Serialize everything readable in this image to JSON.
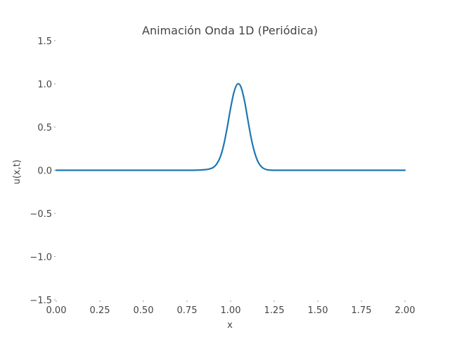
{
  "chart_data": {
    "type": "line",
    "title": "Animación Onda 1D (Periódica)",
    "xlabel": "x",
    "ylabel": "u(x,t)",
    "xlim": [
      0.0,
      2.0
    ],
    "ylim": [
      -1.5,
      1.5
    ],
    "x_ticks": [
      "0.00",
      "0.25",
      "0.50",
      "0.75",
      "1.00",
      "1.25",
      "1.50",
      "1.75",
      "2.00"
    ],
    "y_ticks": [
      "1.5",
      "1.0",
      "0.5",
      "0.0",
      "−0.5",
      "−1.0",
      "−1.5"
    ],
    "grid": false,
    "line_color": "#1f77b4",
    "series": [
      {
        "x": [
          0.0,
          0.1,
          0.2,
          0.3,
          0.4,
          0.5,
          0.6,
          0.7,
          0.75,
          0.8,
          0.85,
          0.88,
          0.9,
          0.92,
          0.94,
          0.96,
          0.98,
          1.0,
          1.02,
          1.04,
          1.06,
          1.08,
          1.1,
          1.12,
          1.14,
          1.16,
          1.18,
          1.2,
          1.22,
          1.25,
          1.3,
          1.4,
          1.5,
          1.6,
          1.7,
          1.8,
          1.9,
          2.0
        ],
        "y": [
          0.0,
          0.0,
          0.0,
          0.0,
          0.0,
          0.0,
          0.0,
          0.0,
          0.0,
          0.001,
          0.006,
          0.016,
          0.032,
          0.072,
          0.15,
          0.29,
          0.49,
          0.72,
          0.91,
          1.0,
          0.96,
          0.8,
          0.57,
          0.35,
          0.19,
          0.086,
          0.034,
          0.011,
          0.003,
          0.0,
          0.0,
          0.0,
          0.0,
          0.0,
          0.0,
          0.0,
          0.0,
          0.0
        ]
      }
    ]
  }
}
